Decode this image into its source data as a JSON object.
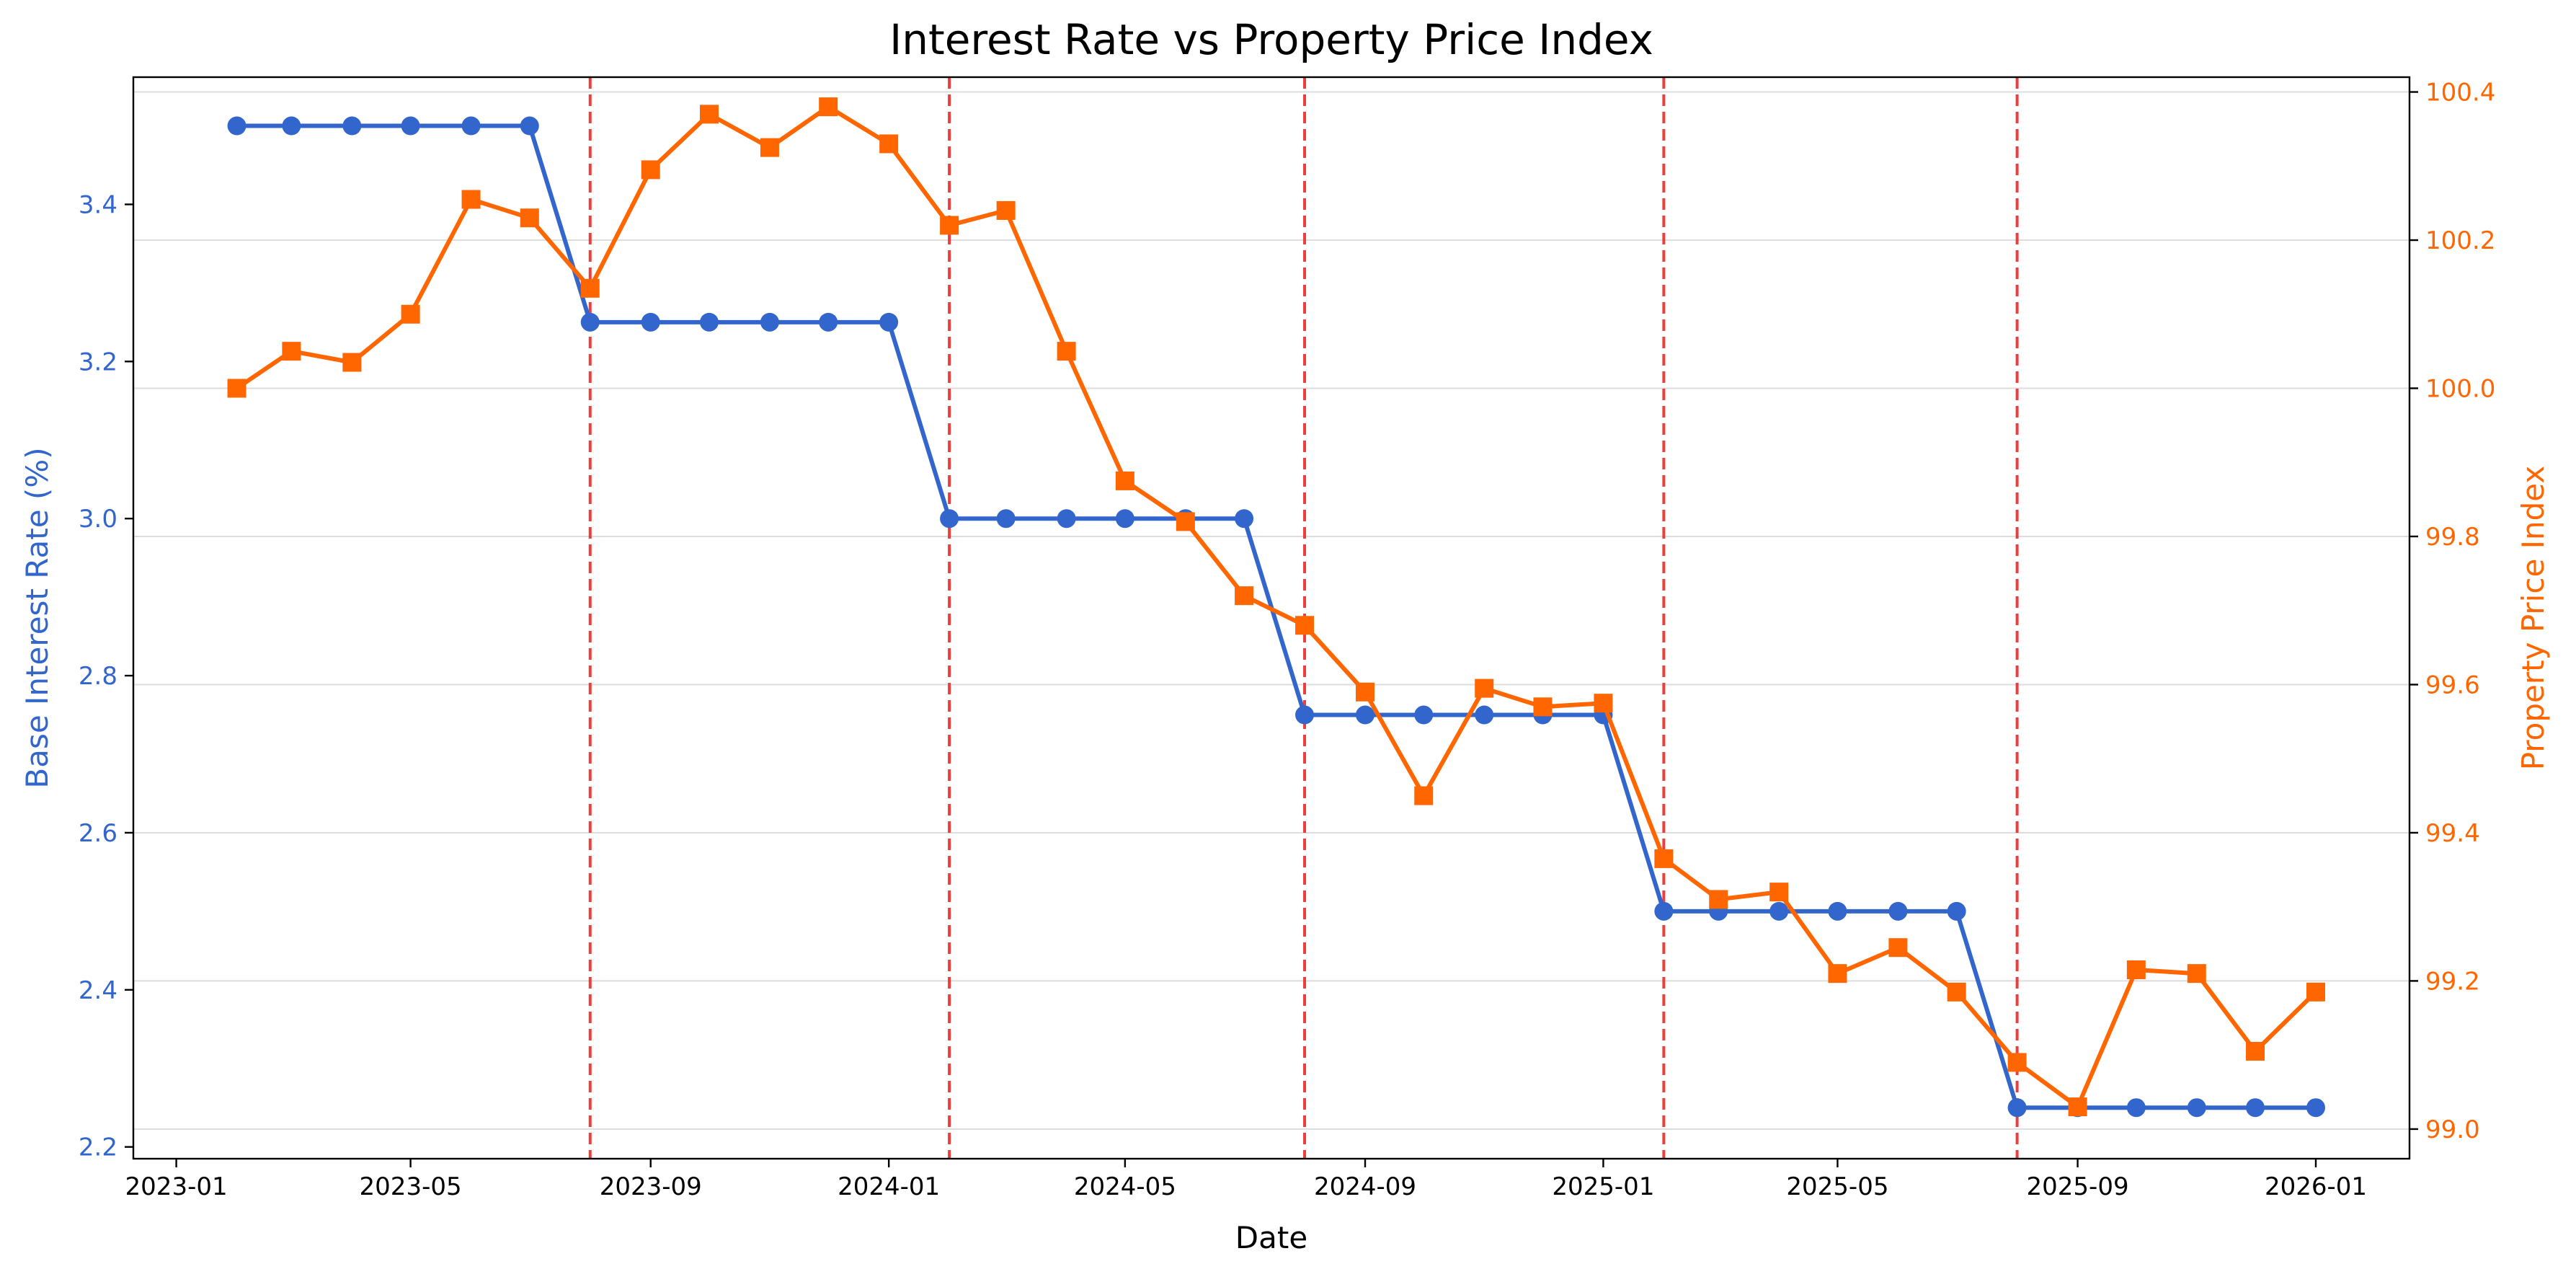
{
  "chart_data": {
    "type": "line",
    "title": "Interest Rate vs Property Price Index",
    "xlabel": "Date",
    "ylabel_left": "Base Interest Rate (%)",
    "ylabel_right": "Property Price Index",
    "x_ticks": [
      "2023-01",
      "2023-05",
      "2023-09",
      "2024-01",
      "2024-05",
      "2024-09",
      "2025-01",
      "2025-05",
      "2025-09",
      "2026-01"
    ],
    "y_left_ticks": [
      "2.2",
      "2.4",
      "2.6",
      "2.8",
      "3.0",
      "3.2",
      "3.4"
    ],
    "y_right_ticks": [
      "99.0",
      "99.2",
      "99.4",
      "99.6",
      "99.8",
      "100.0",
      "100.2",
      "100.4"
    ],
    "x_range": [
      "2022-12-10",
      "2026-02-18"
    ],
    "ylim_left": [
      2.185,
      3.562
    ],
    "ylim_right": [
      98.96,
      100.42
    ],
    "grid": "horizontal",
    "colors": {
      "rate": "#3366cc",
      "index": "#ff6600",
      "rate_cut": "#ee3333"
    },
    "rate_cut_dates": [
      "2023-08-01",
      "2024-02-01",
      "2024-08-01",
      "2025-02-01",
      "2025-08-01"
    ],
    "dates": [
      "2023-02-01",
      "2023-03-01",
      "2023-04-01",
      "2023-05-01",
      "2023-06-01",
      "2023-07-01",
      "2023-08-01",
      "2023-09-01",
      "2023-10-01",
      "2023-11-01",
      "2023-12-01",
      "2024-01-01",
      "2024-02-01",
      "2024-03-01",
      "2024-04-01",
      "2024-05-01",
      "2024-06-01",
      "2024-07-01",
      "2024-08-01",
      "2024-09-01",
      "2024-10-01",
      "2024-11-01",
      "2024-12-01",
      "2025-01-01",
      "2025-02-01",
      "2025-03-01",
      "2025-04-01",
      "2025-05-01",
      "2025-06-01",
      "2025-07-01",
      "2025-08-01",
      "2025-09-01",
      "2025-10-01",
      "2025-11-01",
      "2025-12-01",
      "2026-01-01"
    ],
    "series": [
      {
        "axis": "left",
        "values": [
          3.5,
          3.5,
          3.5,
          3.5,
          3.5,
          3.5,
          3.25,
          3.25,
          3.25,
          3.25,
          3.25,
          3.25,
          3.0,
          3.0,
          3.0,
          3.0,
          3.0,
          3.0,
          2.75,
          2.75,
          2.75,
          2.75,
          2.75,
          2.75,
          2.5,
          2.5,
          2.5,
          2.5,
          2.5,
          2.5,
          2.25,
          2.25,
          2.25,
          2.25,
          2.25,
          2.25
        ]
      },
      {
        "axis": "right",
        "values": [
          100.0,
          100.05,
          100.035,
          100.1,
          100.255,
          100.23,
          100.135,
          100.295,
          100.37,
          100.325,
          100.38,
          100.33,
          100.22,
          100.24,
          100.05,
          99.875,
          99.82,
          99.72,
          99.68,
          99.59,
          99.45,
          99.595,
          99.57,
          99.575,
          99.365,
          99.31,
          99.32,
          99.21,
          99.245,
          99.185,
          99.09,
          99.03,
          99.215,
          99.21,
          99.105,
          99.185
        ]
      }
    ]
  }
}
